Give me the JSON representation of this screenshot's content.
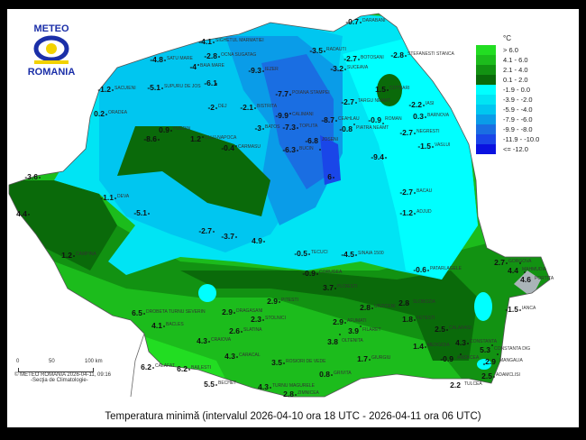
{
  "logo": {
    "top": "METEO",
    "bottom": "ROMANIA"
  },
  "title": "Temperatura minimă (intervalul 2026-04-10 ora 18 UTC - 2026-04-11 ora 06 UTC)",
  "legend": {
    "unit": "°C",
    "classes": [
      {
        "label": "> 6.0",
        "color": "#22dd22"
      },
      {
        "label": "4.1 - 6.0",
        "color": "#1cbc1c"
      },
      {
        "label": "2.1 - 4.0",
        "color": "#129212"
      },
      {
        "label": "0.1 - 2.0",
        "color": "#0a6a0a"
      },
      {
        "label": "-1.9 - 0.0",
        "color": "#00ffff"
      },
      {
        "label": "-3.9 - -2.0",
        "color": "#00e4f4"
      },
      {
        "label": "-5.9 - -4.0",
        "color": "#00c6f0"
      },
      {
        "label": "-7.9 - -6.0",
        "color": "#0a9ce8"
      },
      {
        "label": "-9.9 - -8.0",
        "color": "#1a6ee2"
      },
      {
        "label": "-11.9 - -10.0",
        "color": "#1a46e8"
      },
      {
        "label": "<= -12.0",
        "color": "#0a12e0"
      }
    ]
  },
  "scale": {
    "ticks": [
      "0",
      "50",
      "100 km"
    ],
    "copyright": "© METEO ROMANIA 2026-04-11, 09:16",
    "section": "-Secţia de Climatologie-"
  },
  "stations": [
    {
      "v": "-4.1",
      "n": "SIGHETUL MARMATIEI"
    },
    {
      "v": "-2.8",
      "n": "OCNA SUGATAG"
    },
    {
      "v": "-4.8",
      "n": "SATU MARE"
    },
    {
      "v": "-4",
      "n": "BAIA MARE"
    },
    {
      "v": "-5.1",
      "n": "SUPURU DE JOS"
    },
    {
      "v": "-1.2",
      "n": "SACUIENI"
    },
    {
      "v": "-6.1",
      "n": ""
    },
    {
      "v": "-9.3",
      "n": "IEZER"
    },
    {
      "v": "-7.7",
      "n": "POIANA STAMPEI"
    },
    {
      "v": "-2.1",
      "n": "BISTRITA"
    },
    {
      "v": "-2",
      "n": "DEJ"
    },
    {
      "v": "-3",
      "n": "BATOS"
    },
    {
      "v": "-9.9",
      "n": "CALIMANI"
    },
    {
      "v": "-7.3",
      "n": "TOPLITA"
    },
    {
      "v": "-8.7",
      "n": "CEAHLAU"
    },
    {
      "v": "-6.3",
      "n": "BUCIN"
    },
    {
      "v": "-6.8",
      "n": "JOSENI"
    },
    {
      "v": "-0.7",
      "n": "DARABANI"
    },
    {
      "v": "-3.5",
      "n": "RADAUTI"
    },
    {
      "v": "-2.7",
      "n": "BOTOSANI"
    },
    {
      "v": "-3.2",
      "n": "SUCEAVA"
    },
    {
      "v": "-2.8",
      "n": "STEFANESTI STANCA"
    },
    {
      "v": "1.5",
      "n": "COTNARI"
    },
    {
      "v": "-2.7",
      "n": "TARGU NEAMT"
    },
    {
      "v": "-2.2",
      "n": "IASI"
    },
    {
      "v": "0.3",
      "n": "BARNOVA"
    },
    {
      "v": "-0.8",
      "n": "PIATRA NEAMT"
    },
    {
      "v": "-0.9",
      "n": "ROMAN"
    },
    {
      "v": "-2.7",
      "n": "NEGRESTI"
    },
    {
      "v": "-1.5",
      "n": "VASLUI"
    },
    {
      "v": "0.2",
      "n": "ORADEA"
    },
    {
      "v": "0.9",
      "n": "HUEDIN"
    },
    {
      "v": "1.2",
      "n": "CLUJ-NAPOCA"
    },
    {
      "v": "-0.4",
      "n": "CARMASU"
    },
    {
      "v": "-8.6",
      "n": ""
    },
    {
      "v": "6.5",
      "n": "DROBETA TURNU SEVERIN"
    },
    {
      "v": "4.1",
      "n": "BACLES"
    },
    {
      "v": "4.3",
      "n": "CRAIOVA"
    },
    {
      "v": "2.6",
      "n": "SLATINA"
    },
    {
      "v": "2.9",
      "n": "DRAGASANI"
    },
    {
      "v": "6.2",
      "n": "CALAFAT"
    },
    {
      "v": "6.2",
      "n": "BAILESTI"
    },
    {
      "v": "5.5",
      "n": "BECHET"
    },
    {
      "v": "4.3",
      "n": "CARACAL"
    },
    {
      "v": "3.5",
      "n": "ROSIORI DE VEDE"
    },
    {
      "v": "4.3",
      "n": "TURNU MAGURELE"
    },
    {
      "v": "2.8",
      "n": "ZIMNICEA"
    },
    {
      "v": "2.3",
      "n": "STOLNICI"
    },
    {
      "v": "2.9",
      "n": "PITESTI"
    },
    {
      "v": "3.7",
      "n": "PLOIESTI"
    },
    {
      "v": "2.8",
      "n": "URZICENI"
    },
    {
      "v": "2.9",
      "n": "AFUMATI"
    },
    {
      "v": "3.9",
      "n": "FILARET"
    },
    {
      "v": "3.8",
      "n": "OLTENITA"
    },
    {
      "v": "1.7",
      "n": "GIURGIU"
    },
    {
      "v": "0.8",
      "n": "GRIVITA"
    },
    {
      "v": "2.8",
      "n": "SLOBOZIA"
    },
    {
      "v": "1.8",
      "n": "FETESTI"
    },
    {
      "v": "2.5",
      "n": "CALARASI"
    },
    {
      "v": "1.4",
      "n": "MEDGIDIA"
    },
    {
      "v": "4.3",
      "n": "CONSTANTA"
    },
    {
      "v": "5.3",
      "n": "CONSTANTA DIG"
    },
    {
      "v": "2.9",
      "n": "MANGALIA"
    },
    {
      "v": "2.5",
      "n": "ADAMCLISI"
    },
    {
      "v": "-0.9",
      "n": "AMZACEA"
    },
    {
      "v": "2.2",
      "n": "TULCEA"
    },
    {
      "v": "2.7",
      "n": "GORGOVA"
    },
    {
      "v": "4.4",
      "n": "MAHMUDIA"
    },
    {
      "v": "4.6",
      "n": "PORTITA"
    },
    {
      "v": "-1.5",
      "n": "IANCA"
    },
    {
      "v": "-0.6",
      "n": "PATARLAGELE"
    },
    {
      "v": "-4.5",
      "n": "SINAIA 1500"
    },
    {
      "v": "-0.5",
      "n": "TECUCI"
    },
    {
      "v": "-1.2",
      "n": "ADJUD"
    },
    {
      "v": "-2.7",
      "n": "BACAU"
    },
    {
      "v": "-9.4",
      "n": ""
    },
    {
      "v": "6",
      "n": ""
    },
    {
      "v": "4.4",
      "n": ""
    },
    {
      "v": "-3.6",
      "n": ""
    },
    {
      "v": "-1.1",
      "n": "DEVA"
    },
    {
      "v": "-5.1",
      "n": ""
    },
    {
      "v": "-2.7",
      "n": ""
    },
    {
      "v": "-3.7",
      "n": ""
    },
    {
      "v": "4.9",
      "n": ""
    },
    {
      "v": "1.2",
      "n": "CAMPINA"
    },
    {
      "v": "-0.9",
      "n": "CORUGEA"
    }
  ]
}
